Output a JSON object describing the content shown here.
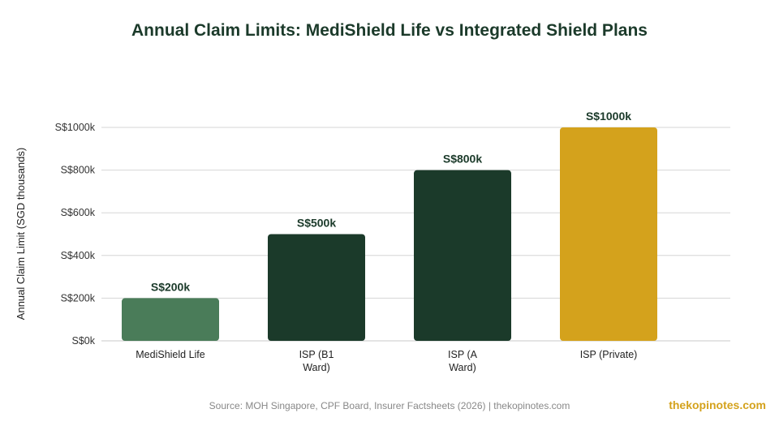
{
  "chart_data": {
    "type": "bar",
    "title": "Annual Claim Limits: MediShield Life vs Integrated Shield Plans",
    "ylabel": "Annual Claim Limit (SGD thousands)",
    "xlabel": "",
    "categories": [
      [
        "MediShield Life"
      ],
      [
        "ISP (B1",
        "Ward)"
      ],
      [
        "ISP (A",
        "Ward)"
      ],
      [
        "ISP (Private)"
      ]
    ],
    "values": [
      200,
      500,
      800,
      1000
    ],
    "value_labels": [
      "S$200k",
      "S$500k",
      "S$800k",
      "S$1000k"
    ],
    "bar_colors": [
      "#4a7c59",
      "#1b3a2a",
      "#1b3a2a",
      "#d4a21c"
    ],
    "ylim": [
      0,
      1000
    ],
    "yticks": [
      0,
      200,
      400,
      600,
      800,
      1000
    ],
    "ytick_labels": [
      "S$0k",
      "S$200k",
      "S$400k",
      "S$600k",
      "S$800k",
      "S$1000k"
    ],
    "grid": true,
    "legend": false
  },
  "footer": {
    "source": "Source: MOH Singapore, CPF Board, Insurer Factsheets (2026) | thekopinotes.com",
    "brand": "thekopinotes.com"
  }
}
